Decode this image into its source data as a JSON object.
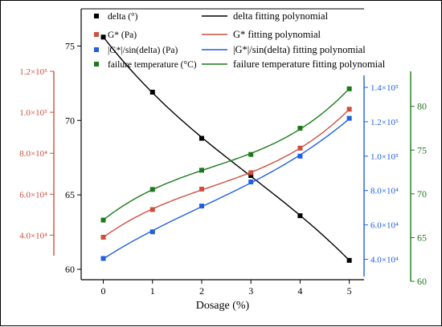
{
  "chart_data": {
    "type": "scatter",
    "x": [
      0,
      1,
      2,
      3,
      4,
      5
    ],
    "xlabel": "Dosage (%)",
    "xlim": [
      -0.45,
      5.3
    ],
    "x_ticks": [
      "0",
      "1",
      "2",
      "3",
      "4",
      "5"
    ],
    "grid": false,
    "legend_position": "top",
    "series": [
      {
        "name": "delta (°)",
        "fit_name": "delta fitting polynomial",
        "axis": "left",
        "color": "#000000",
        "values": [
          75.6,
          71.9,
          68.8,
          66.3,
          63.6,
          60.6
        ],
        "ylim": [
          59.3,
          77.5
        ],
        "ticks": [
          "60",
          "65",
          "70",
          "75"
        ],
        "tick_values": [
          60,
          65,
          70,
          75
        ]
      },
      {
        "name": "G* (Pa)",
        "fit_name": "G* fitting polynomial",
        "axis": "outer-left",
        "color": "#cd4f3d",
        "values": [
          39000,
          52500,
          62500,
          70500,
          82500,
          101500
        ],
        "ylim": [
          30000,
          120000
        ],
        "ticks": [
          "4.0×10⁴",
          "6.0×10⁴",
          "8.0×10⁴",
          "1.0×10⁵",
          "1.2×10⁵"
        ],
        "tick_values": [
          40000,
          60000,
          80000,
          100000,
          120000
        ]
      },
      {
        "name": "|G*|/sin(delta) (Pa)",
        "fit_name": "|G*|/sin(delta) fitting polynomial",
        "axis": "right",
        "color": "#1f5fe0",
        "values": [
          40500,
          56000,
          71000,
          85000,
          100000,
          122000
        ],
        "ylim": [
          30000,
          147000
        ],
        "ticks": [
          "4.0×10⁴",
          "6.0×10⁴",
          "8.0×10⁴",
          "1.0×10⁵",
          "1.2×10⁵",
          "1.4×10⁵"
        ],
        "tick_values": [
          40000,
          60000,
          80000,
          100000,
          120000,
          140000
        ]
      },
      {
        "name": "failure temperature (°C)",
        "fit_name": "failure temperature fitting polynomial",
        "axis": "outer-right",
        "color": "#1a7a1a",
        "values": [
          67,
          70.5,
          72.7,
          74.5,
          77.5,
          82
        ],
        "ylim": [
          60,
          84
        ],
        "ticks": [
          "60",
          "65",
          "70",
          "75",
          "80"
        ],
        "tick_values": [
          60,
          65,
          70,
          75,
          80
        ]
      }
    ]
  }
}
